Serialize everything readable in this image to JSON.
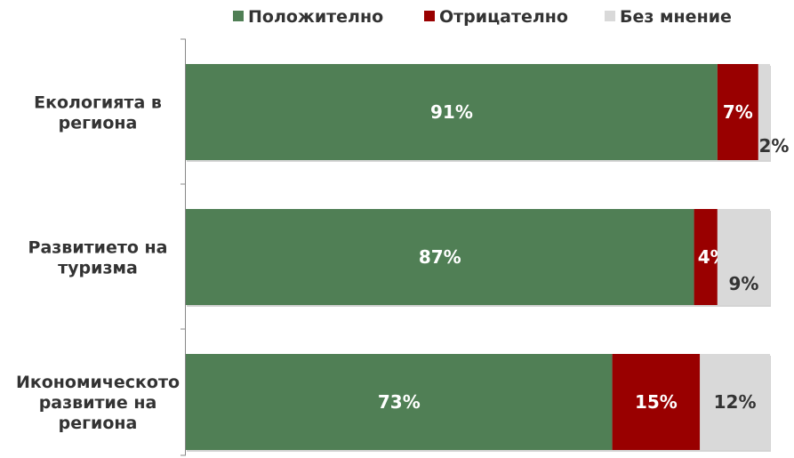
{
  "colors": {
    "positive": "#507f55",
    "negative": "#990000",
    "neutral": "#d9d9d9",
    "axis": "#888888",
    "bar_shadow": "#aaaaaa",
    "text_dark": "#333333",
    "text_light": "#ffffff"
  },
  "chart_data": {
    "type": "bar",
    "orientation": "horizontal",
    "stacked": true,
    "percent_stacked": true,
    "legend_position": "top",
    "grid": false,
    "xlim": [
      0,
      100
    ],
    "categories": [
      [
        "Екологията в",
        "региона"
      ],
      [
        "Развитието на",
        "туризма"
      ],
      [
        "Икономическото",
        "развитие на",
        "региона"
      ]
    ],
    "series": [
      {
        "name": "Положително",
        "color": "#507f55",
        "values": [
          91,
          87,
          73
        ],
        "labels": [
          "91%",
          "87%",
          "73%"
        ]
      },
      {
        "name": "Отрицателно",
        "color": "#990000",
        "values": [
          7,
          4,
          15
        ],
        "labels": [
          "7%",
          "4%",
          "15%"
        ]
      },
      {
        "name": "Без мнение",
        "color": "#d9d9d9",
        "values": [
          2,
          9,
          12
        ],
        "labels": [
          "2%",
          "9%",
          "12%"
        ]
      }
    ]
  }
}
